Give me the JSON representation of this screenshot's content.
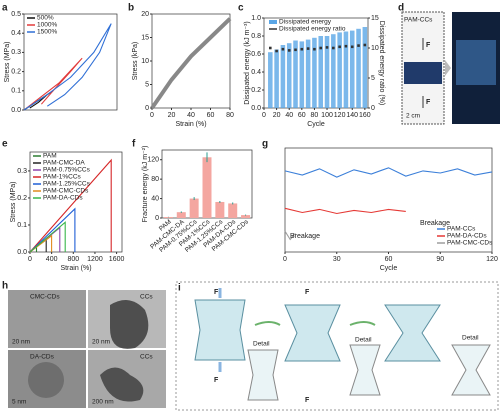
{
  "panel_labels": [
    "a",
    "b",
    "c",
    "d",
    "e",
    "f",
    "g",
    "h",
    "i"
  ],
  "panels": {
    "d": {
      "sample": "PAM-CCs",
      "force_top": "F",
      "force_bottom": "F",
      "scale": "2 cm"
    },
    "h": {
      "labels": [
        "CMC-CDs",
        "CCs",
        "DA-CDs",
        "CCs"
      ],
      "scales": [
        "20 nm",
        "20 nm",
        "5 nm",
        "200 nm"
      ]
    },
    "i": {
      "forces": [
        "F",
        "F",
        "F",
        "F"
      ],
      "details": [
        "Detail",
        "Detail",
        "Detail"
      ]
    }
  },
  "chart_data": [
    {
      "type": "line",
      "ylabel": "Stress (MPa)",
      "xlim": [
        0,
        1600
      ],
      "ylim": [
        0,
        0.5
      ],
      "yticks": [
        {
          "value": 0,
          "label": "0.0"
        },
        0.1,
        0.2,
        0.3,
        0.4,
        0.5
      ],
      "legend": "upper left",
      "series": [
        {
          "name": "500%",
          "color": "#111111",
          "x": [
            0,
            150,
            300,
            500,
            400,
            250,
            100
          ],
          "values": [
            0,
            0.03,
            0.06,
            0.1,
            0.08,
            0.04,
            0.01
          ]
        },
        {
          "name": "1000%",
          "color": "#e23a3a",
          "x": [
            0,
            300,
            600,
            1000,
            800,
            500,
            300
          ],
          "values": [
            0,
            0.07,
            0.14,
            0.27,
            0.2,
            0.1,
            0.03
          ]
        },
        {
          "name": "1500%",
          "color": "#2f6fd6",
          "x": [
            0,
            400,
            800,
            1200,
            1500,
            1300,
            1000,
            700,
            400
          ],
          "values": [
            0,
            0.08,
            0.17,
            0.3,
            0.45,
            0.3,
            0.17,
            0.08,
            0.02
          ]
        }
      ]
    },
    {
      "type": "line",
      "xlabel": "Strain (%)",
      "ylabel": "Stress (kPa)",
      "xlim": [
        0,
        80
      ],
      "ylim": [
        0,
        20
      ],
      "xticks": [
        0,
        20,
        40,
        60,
        80
      ],
      "yticks": [
        0,
        5,
        10,
        15,
        20
      ],
      "series": [
        {
          "color": "#888888",
          "x": [
            0,
            10,
            20,
            40,
            60,
            80
          ],
          "values": [
            0,
            3,
            6,
            11,
            15,
            19
          ]
        }
      ]
    },
    {
      "type": "bar",
      "xlabel": "Cycle",
      "ylabel": "Dissipated energy (kJ m⁻³)",
      "y2label": "Dissipated energy ratio (%)",
      "xlim": [
        0,
        165
      ],
      "ylim": [
        0,
        1
      ],
      "y2lim": [
        0,
        15
      ],
      "legend": "upper center",
      "xticks": [
        0,
        20,
        40,
        60,
        80,
        100,
        120,
        140,
        160
      ],
      "yticks": [
        {
          "value": 0,
          "label": "0.0"
        },
        0.2,
        0.4,
        0.6,
        0.8,
        {
          "value": 1,
          "label": "1.0"
        }
      ],
      "y2ticks": [
        0,
        5,
        10,
        15
      ],
      "x": [
        10,
        20,
        30,
        40,
        50,
        60,
        70,
        80,
        90,
        100,
        110,
        120,
        130,
        140,
        150,
        160
      ],
      "series": [
        {
          "name": "Dissipated energy",
          "color": "#5aa6e6",
          "values": [
            0.62,
            0.65,
            0.7,
            0.72,
            0.75,
            0.74,
            0.76,
            0.78,
            0.8,
            0.8,
            0.82,
            0.84,
            0.85,
            0.86,
            0.88,
            0.9
          ]
        },
        {
          "name": "Dissipated energy ratio",
          "color": "#333333",
          "axis": "y2",
          "values": [
            10,
            9.5,
            9.8,
            9.6,
            9.7,
            9.8,
            9.9,
            9.8,
            10,
            10.1,
            10,
            10.2,
            10.3,
            10.2,
            10.4,
            10.5
          ]
        }
      ]
    },
    {
      "type": "line",
      "xlabel": "Strain (%)",
      "ylabel": "Stress (MPa)",
      "xlim": [
        0,
        1700
      ],
      "ylim": [
        0,
        0.37
      ],
      "xticks": [
        0,
        400,
        800,
        1200,
        1600
      ],
      "yticks": [
        {
          "value": 0,
          "label": "0.0"
        },
        0.1,
        0.2,
        0.3
      ],
      "legend": "upper left",
      "series": [
        {
          "name": "PAM",
          "color": "#2e7d32",
          "x": [
            0,
            120,
            120
          ],
          "values": [
            0,
            0.02,
            0
          ]
        },
        {
          "name": "PAM-CMC-DA",
          "color": "#222222",
          "x": [
            0,
            300,
            300
          ],
          "values": [
            0,
            0.05,
            0
          ]
        },
        {
          "name": "PAM-0.75%CCs",
          "color": "#8e44ad",
          "x": [
            0,
            550,
            550
          ],
          "values": [
            0,
            0.09,
            0
          ]
        },
        {
          "name": "PAM-1%CCs",
          "color": "#d62728",
          "x": [
            0,
            1500,
            1500
          ],
          "values": [
            0,
            0.34,
            0
          ]
        },
        {
          "name": "PAM-1.25%CCs",
          "color": "#1f5fd6",
          "x": [
            0,
            830,
            830
          ],
          "values": [
            0,
            0.16,
            0
          ]
        },
        {
          "name": "PAM-CMC-CDs",
          "color": "#e08a1e",
          "x": [
            0,
            400,
            400
          ],
          "values": [
            0,
            0.06,
            0
          ]
        },
        {
          "name": "PAM-DA-CDs",
          "color": "#39b54a",
          "x": [
            0,
            650,
            650
          ],
          "values": [
            0,
            0.11,
            0
          ]
        }
      ]
    },
    {
      "type": "bar",
      "ylabel": "Fracture energy (kJ m⁻²)",
      "ylim": [
        0,
        140
      ],
      "yticks": [
        0,
        40,
        80,
        120
      ],
      "color": "#f4a6a0",
      "categories": [
        "PAM",
        "PAM-CMC-DA",
        "PAM-0.75%CCs",
        "PAM-1%CCs",
        "PAM-1.25%CCs",
        "PAM-DA-CDs",
        "PAM-CMC-CDs"
      ],
      "values": [
        2,
        12,
        40,
        125,
        33,
        30,
        6
      ],
      "errors": [
        0.5,
        1.5,
        3,
        10,
        2,
        2,
        1
      ]
    },
    {
      "type": "line",
      "xlabel": "Cycle",
      "xlim": [
        0,
        120
      ],
      "ylim": [
        0,
        1
      ],
      "xticks": [
        0,
        30,
        60,
        90,
        120
      ],
      "legend": "lower right",
      "annotations": [
        "Breakage",
        "Breakage"
      ],
      "series": [
        {
          "name": "PAM-CCs",
          "color": "#3b7fd9",
          "x": [
            0,
            10,
            20,
            30,
            40,
            50,
            60,
            70,
            80,
            90,
            100,
            110,
            120
          ],
          "values": [
            0.78,
            0.74,
            0.8,
            0.72,
            0.79,
            0.75,
            0.81,
            0.73,
            0.78,
            0.76,
            0.8,
            0.74,
            0.77
          ]
        },
        {
          "name": "PAM-DA-CDs",
          "color": "#e53935",
          "x": [
            0,
            10,
            20,
            30,
            40,
            50,
            60,
            70
          ],
          "values": [
            0.42,
            0.38,
            0.41,
            0.37,
            0.4,
            0.38,
            0.41,
            0.39
          ]
        },
        {
          "name": "PAM-CMC-CDs",
          "color": "#9e9e9e",
          "x": [
            0,
            3,
            6
          ],
          "values": [
            0.2,
            0.12,
            0.18
          ]
        }
      ]
    }
  ]
}
